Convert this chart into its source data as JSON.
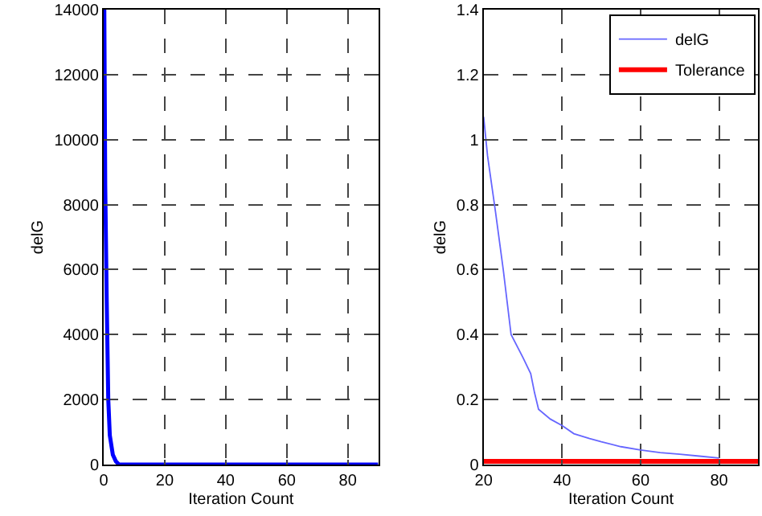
{
  "chart_data": [
    {
      "type": "line",
      "xlabel": "Iteration Count",
      "ylabel": "delG",
      "xlim": [
        0,
        90
      ],
      "xticks": [
        0,
        20,
        40,
        60,
        80
      ],
      "ylim": [
        0,
        14000
      ],
      "yticks": [
        0,
        2000,
        4000,
        6000,
        8000,
        10000,
        12000,
        14000
      ],
      "grid": true,
      "legend": false,
      "series": [
        {
          "color": "#0000ff",
          "x": [
            0.2,
            0.5,
            1,
            1.5,
            2,
            3,
            4,
            5,
            10,
            20,
            40,
            60,
            90
          ],
          "values": [
            14000,
            8600,
            5000,
            2000,
            900,
            300,
            100,
            0,
            0,
            0,
            0,
            0,
            0
          ]
        }
      ]
    },
    {
      "type": "line",
      "xlabel": "Iteration Count",
      "ylabel": "delG",
      "xlim": [
        20,
        90
      ],
      "xticks": [
        20,
        40,
        60,
        80
      ],
      "ylim": [
        0,
        1.4
      ],
      "yticks": [
        0,
        0.2,
        0.4,
        0.6,
        0.8,
        1,
        1.2,
        1.4
      ],
      "grid": true,
      "legend": "top right",
      "series": [
        {
          "name": "delG",
          "color": "#6666ff",
          "x": [
            20,
            21,
            23,
            25,
            26,
            27,
            30,
            32,
            33,
            34,
            37,
            40,
            43,
            47,
            50,
            55,
            60,
            65,
            70,
            75,
            80
          ],
          "values": [
            1.07,
            0.95,
            0.78,
            0.6,
            0.5,
            0.4,
            0.33,
            0.28,
            0.22,
            0.17,
            0.14,
            0.12,
            0.095,
            0.08,
            0.07,
            0.055,
            0.045,
            0.037,
            0.032,
            0.026,
            0.02
          ]
        },
        {
          "name": "Tolerance",
          "color": "#ff0000",
          "x": [
            20,
            90
          ],
          "values": [
            0.01,
            0.01
          ]
        }
      ]
    }
  ]
}
